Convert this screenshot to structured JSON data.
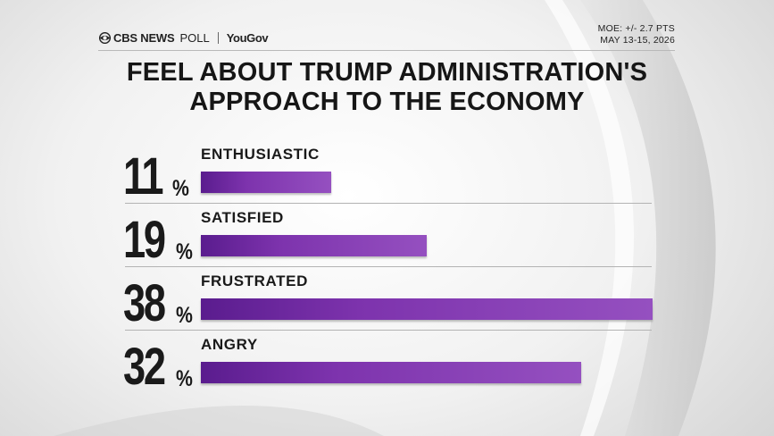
{
  "header": {
    "brand_cbs": "CBS NEWS",
    "brand_poll": "POLL",
    "brand_partner": "YouGov",
    "logo_icon": "cbs-eye-icon",
    "moe": "MOE: +/- 2.7 PTS",
    "date": "MAY 13-15, 2026"
  },
  "title": {
    "line1": "FEEL ABOUT TRUMP ADMINISTRATION'S",
    "line2": "APPROACH TO THE ECONOMY"
  },
  "colors": {
    "bar_start": "#5a1c8e",
    "bar_end": "#9550c0",
    "text": "#1a1a1a"
  },
  "chart_data": {
    "type": "bar",
    "orientation": "horizontal",
    "categories": [
      "ENTHUSIASTIC",
      "SATISFIED",
      "FRUSTRATED",
      "ANGRY"
    ],
    "values": [
      11,
      19,
      38,
      32
    ],
    "value_labels": [
      "11",
      "19",
      "38",
      "32"
    ],
    "unit": "%",
    "xlim": [
      0,
      38
    ],
    "grid": false
  }
}
